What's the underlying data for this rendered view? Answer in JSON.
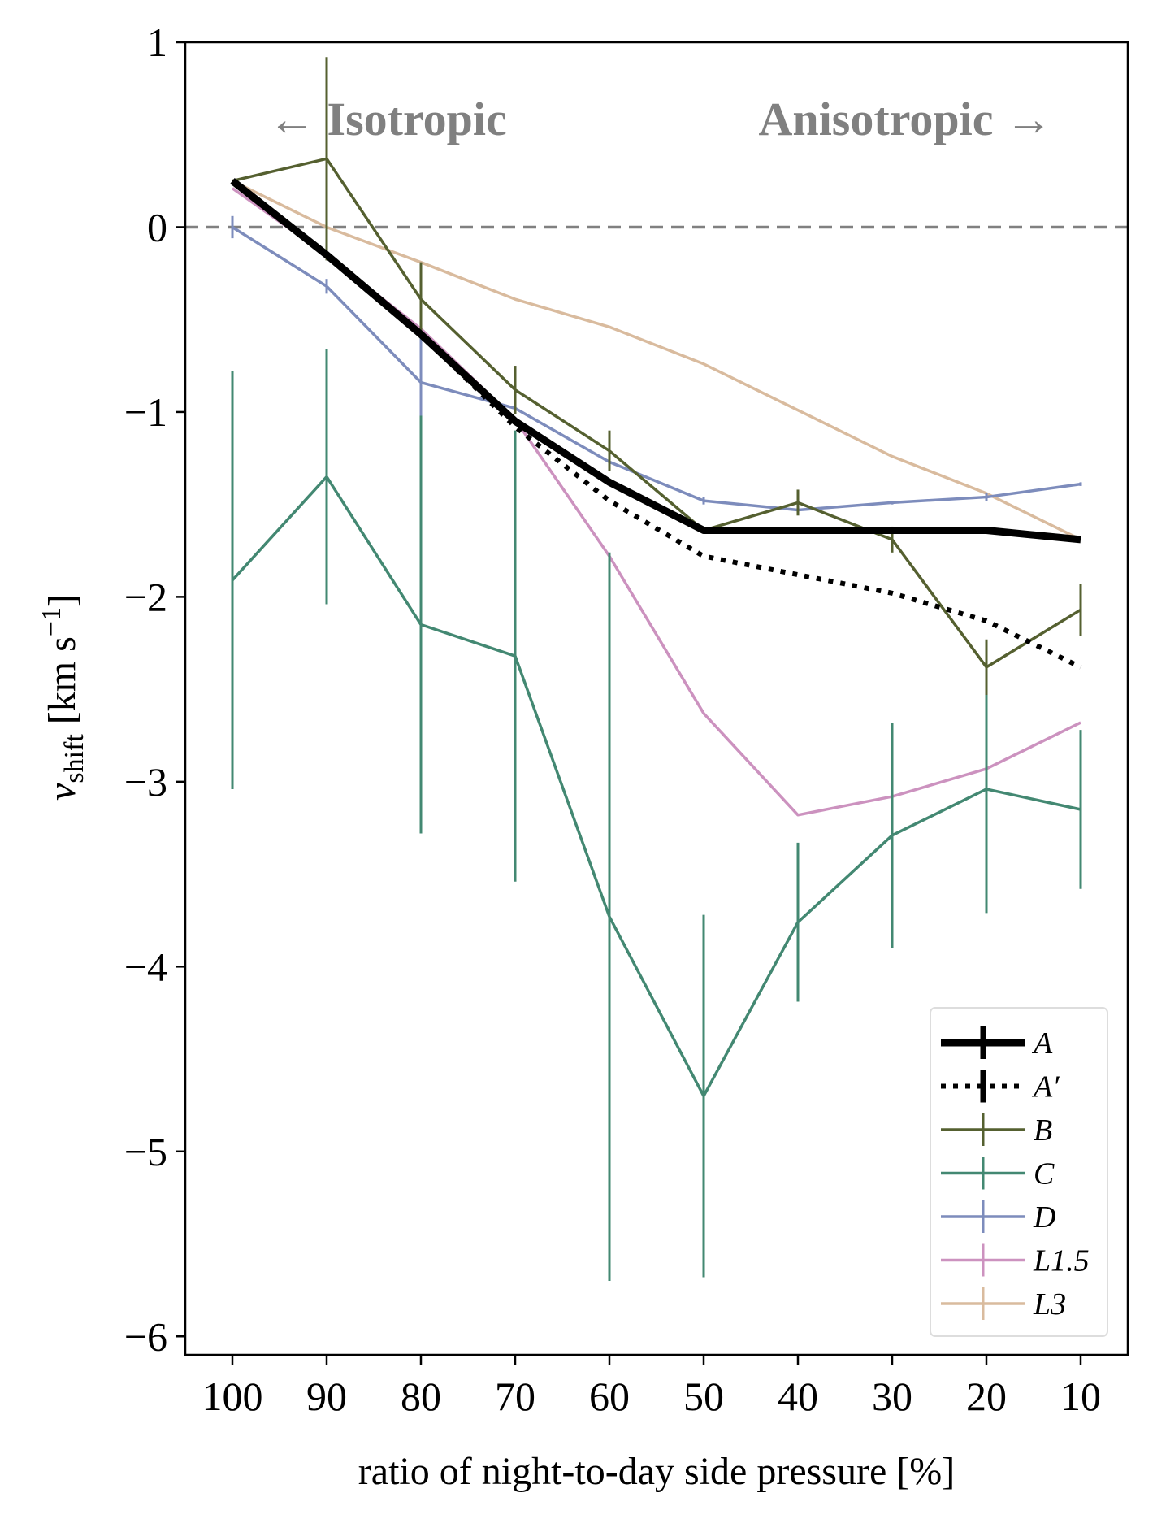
{
  "chart_data": {
    "type": "line",
    "title": "",
    "xlabel": "ratio of night-to-day side pressure [%]",
    "ylabel": {
      "main": "v",
      "subscript": "shift",
      "units_open": " [km s",
      "units_sup": "−1",
      "units_close": "]"
    },
    "x": [
      100,
      90,
      80,
      70,
      60,
      50,
      40,
      30,
      20,
      10
    ],
    "xlim": [
      105,
      5
    ],
    "ylim": [
      -6.1,
      1.0
    ],
    "yticks": [
      1,
      0,
      -1,
      -2,
      -3,
      -4,
      -5,
      -6
    ],
    "ytick_labels": [
      "1",
      "0",
      "−1",
      "−2",
      "−3",
      "−4",
      "−5",
      "−6"
    ],
    "xtick_labels": [
      "100",
      "90",
      "80",
      "70",
      "60",
      "50",
      "40",
      "30",
      "20",
      "10"
    ],
    "reference_line": {
      "y": 0,
      "style": "dashed",
      "color": "#808080"
    },
    "annotations": [
      {
        "text": "← Isotropic",
        "position": "top-left"
      },
      {
        "text": "Anisotropic →",
        "position": "top-right"
      }
    ],
    "legend_position": "lower-right",
    "series": [
      {
        "name": "A",
        "color": "#000000",
        "style": "solid",
        "width": 9,
        "values": [
          0.25,
          -0.15,
          -0.58,
          -1.05,
          -1.38,
          -1.64,
          -1.64,
          -1.64,
          -1.64,
          -1.69
        ],
        "errors": [
          0,
          0,
          0,
          0,
          0,
          0,
          0,
          0,
          0,
          0
        ]
      },
      {
        "name": "A′",
        "color": "#000000",
        "style": "dotted",
        "width": 6,
        "values": [
          0.25,
          -0.15,
          -0.58,
          -1.08,
          -1.48,
          -1.78,
          -1.88,
          -1.98,
          -2.13,
          -2.38
        ],
        "errors": [
          0,
          0,
          0,
          0,
          0,
          0,
          0,
          0,
          0,
          0
        ]
      },
      {
        "name": "B",
        "color": "#556030",
        "style": "solid",
        "width": 3.5,
        "values": [
          0.25,
          0.37,
          -0.39,
          -0.88,
          -1.21,
          -1.64,
          -1.49,
          -1.69,
          -2.38,
          -2.07
        ],
        "errors": [
          0,
          0.55,
          0.2,
          0.13,
          0.11,
          0,
          0.07,
          0.07,
          0.15,
          0.14
        ]
      },
      {
        "name": "C",
        "color": "#438872",
        "style": "solid",
        "width": 3.5,
        "values": [
          -1.91,
          -1.35,
          -2.15,
          -2.32,
          -3.73,
          -4.7,
          -3.76,
          -3.29,
          -3.04,
          -3.15
        ],
        "errors": [
          1.13,
          0.69,
          1.13,
          1.22,
          1.97,
          0.98,
          0.43,
          0.61,
          0.67,
          0.43
        ]
      },
      {
        "name": "D",
        "color": "#7d8cbc",
        "style": "solid",
        "width": 3.5,
        "values": [
          0.0,
          -0.32,
          -0.84,
          -0.98,
          -1.27,
          -1.48,
          -1.53,
          -1.49,
          -1.46,
          -1.39
        ],
        "errors": [
          0.06,
          0.04,
          0.32,
          0.02,
          0.02,
          0.02,
          0.02,
          0.01,
          0.02,
          0.01
        ]
      },
      {
        "name": "L1.5",
        "color": "#cc92bf",
        "style": "solid",
        "width": 3.5,
        "values": [
          0.21,
          -0.15,
          -0.55,
          -1.04,
          -1.78,
          -2.63,
          -3.18,
          -3.08,
          -2.93,
          -2.68
        ],
        "errors": [
          0,
          0,
          0,
          0,
          0,
          0,
          0,
          0,
          0,
          0
        ]
      },
      {
        "name": "L3",
        "color": "#d9bb9e",
        "style": "solid",
        "width": 3.5,
        "values": [
          0.25,
          0.0,
          -0.19,
          -0.39,
          -0.54,
          -0.74,
          -0.99,
          -1.24,
          -1.44,
          -1.69
        ],
        "errors": [
          0,
          0,
          0,
          0,
          0,
          0,
          0,
          0,
          0,
          0
        ]
      }
    ]
  }
}
